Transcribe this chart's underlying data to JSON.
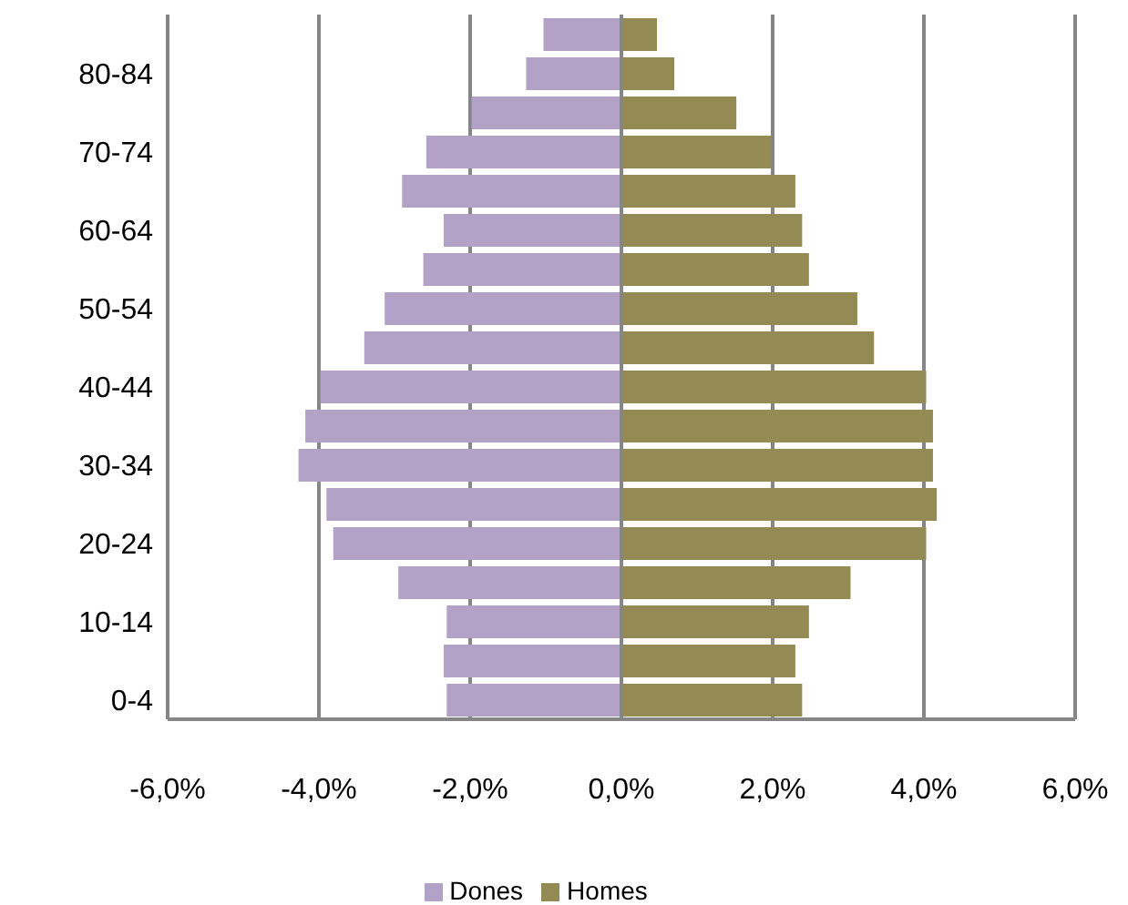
{
  "chart_data": {
    "type": "bar",
    "orientation": "horizontal",
    "stacked": true,
    "categories": [
      null,
      "80-84",
      null,
      "70-74",
      null,
      "60-64",
      null,
      "50-54",
      null,
      "40-44",
      null,
      "30-34",
      null,
      "20-24",
      null,
      "10-14",
      null,
      "0-4"
    ],
    "series": [
      {
        "name": "Dones",
        "color": "#b3a2c7",
        "values": [
          -1.03,
          -1.26,
          -1.98,
          -2.58,
          -2.9,
          -2.35,
          -2.62,
          -3.13,
          -3.4,
          -3.98,
          -4.18,
          -4.27,
          -3.9,
          -3.81,
          -2.95,
          -2.31,
          -2.35,
          -2.31
        ]
      },
      {
        "name": "Homes",
        "color": "#948a54",
        "values": [
          0.47,
          0.7,
          1.52,
          1.98,
          2.3,
          2.39,
          2.48,
          3.12,
          3.34,
          4.03,
          4.12,
          4.12,
          4.17,
          4.03,
          3.03,
          2.48,
          2.3,
          2.39
        ]
      }
    ],
    "xlim": [
      -6,
      6
    ],
    "xticks": [
      {
        "value": -6,
        "label": "-6,0%"
      },
      {
        "value": -4,
        "label": "-4,0%"
      },
      {
        "value": -2,
        "label": "-2,0%"
      },
      {
        "value": 0,
        "label": "0,0%"
      },
      {
        "value": 2,
        "label": "2,0%"
      },
      {
        "value": 4,
        "label": "4,0%"
      },
      {
        "value": 6,
        "label": "6,0%"
      }
    ],
    "grid": "x",
    "legend": "bottom"
  }
}
